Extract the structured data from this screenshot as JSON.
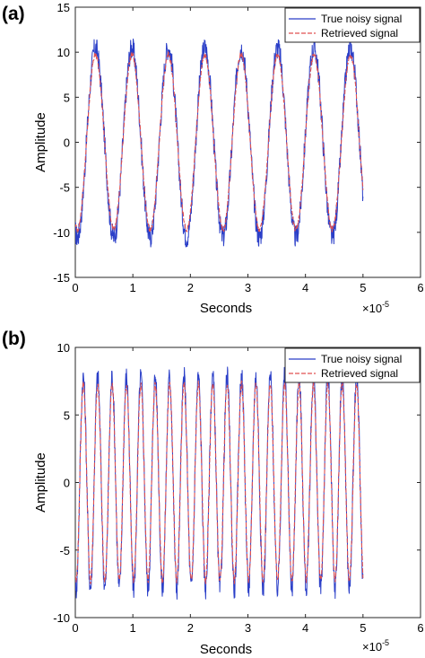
{
  "chart_data": [
    {
      "panel_label": "(a)",
      "type": "line",
      "xlabel": "Seconds",
      "ylabel": "Amplitude",
      "xlim": [
        0,
        6
      ],
      "ylim": [
        -15,
        15
      ],
      "x_ticks": [
        "0",
        "1",
        "2",
        "3",
        "4",
        "5",
        "6"
      ],
      "y_ticks": [
        "15",
        "10",
        "5",
        "0",
        "-5",
        "-10",
        "-15"
      ],
      "x_exponent_base": "×10",
      "x_exponent": "-5",
      "legend_position": "top-right",
      "grid": false,
      "x_range_data": [
        0,
        5
      ],
      "cycles": 7.9,
      "series": [
        {
          "name": "True noisy signal",
          "color": "#2b3fc8",
          "amplitude": 10.5,
          "noise": 1.3
        },
        {
          "name": "Retrieved signal",
          "color": "#e05050",
          "amplitude": 9.7,
          "noise": 0.3
        }
      ]
    },
    {
      "panel_label": "(b)",
      "type": "line",
      "xlabel": "Seconds",
      "ylabel": "Amplitude",
      "xlim": [
        0,
        6
      ],
      "ylim": [
        -10,
        10
      ],
      "x_ticks": [
        "0",
        "1",
        "2",
        "3",
        "4",
        "5",
        "6"
      ],
      "y_ticks": [
        "10",
        "5",
        "0",
        "-5",
        "-10"
      ],
      "x_exponent_base": "×10",
      "x_exponent": "-5",
      "legend_position": "top-right",
      "grid": false,
      "x_range_data": [
        0,
        5
      ],
      "cycles": 20,
      "series": [
        {
          "name": "True noisy signal",
          "color": "#2b3fc8",
          "amplitude": 7.8,
          "noise": 0.9
        },
        {
          "name": "Retrieved signal",
          "color": "#e05050",
          "amplitude": 7.3,
          "noise": 0.25
        }
      ]
    }
  ]
}
